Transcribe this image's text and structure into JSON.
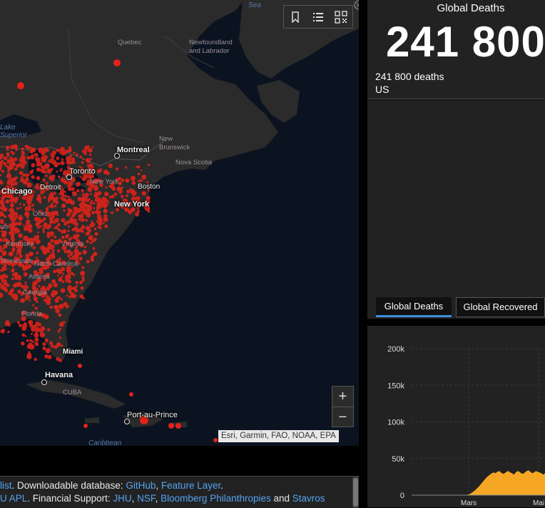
{
  "map": {
    "labels": {
      "sea": "Sea",
      "quebec": "Quebec",
      "newfoundland": "Newfoundland\nand Labrador",
      "lake_superior": "Lake\nSuperior",
      "new_brunswick": "New\nBrunswick",
      "nova_scotia": "Nova Scotia",
      "montreal": "Montreal",
      "toronto": "Toronto",
      "chicago": "Chicago",
      "detroit": "Detroit",
      "new_york_state": "New York",
      "boston": "Boston",
      "new_york_city": "New York",
      "ohio": "Ohio",
      "kentucky": "Kentucky",
      "virginia": "Virginia",
      "tennessee": "Tennessee",
      "north_carolina": "North Carolina",
      "atlanta": "Atlanta",
      "georgia": "Georgia",
      "florida": "Florida",
      "miami": "Miami",
      "havana": "Havana",
      "cuba": "CUBA",
      "port_au_prince": "Port-au-Prince",
      "caribbean": "Caribbean",
      "uis": "uis"
    },
    "attribution": "Esri, Garmin, FAO, NOAA, EPA",
    "zoom_in": "+",
    "zoom_out": "−",
    "toolbar_icons": [
      "bookmark-icon",
      "list-icon",
      "qr-grid-icon"
    ]
  },
  "footer": {
    "line1": {
      "t1": "list",
      "t2": ". Downloadable database: ",
      "t3": "GitHub",
      "t4": ", ",
      "t5": "Feature Layer",
      "t6": "."
    },
    "line2": {
      "t1": "U APL",
      "t2": ". Financial Support: ",
      "t3": "JHU",
      "t4": ", ",
      "t5": "NSF",
      "t6": ", ",
      "t7": "Bloomberg Philanthropies",
      "t8": " and ",
      "t9": "Stavros"
    }
  },
  "deaths_panel": {
    "title": "Global Deaths",
    "total": "241 800",
    "entries": [
      {
        "value": "241 800 deaths",
        "region": "US"
      }
    ]
  },
  "tabs": [
    {
      "label": "Global Deaths",
      "active": true
    },
    {
      "label": "Global Recovered",
      "active": false
    }
  ],
  "colors": {
    "accent": "#3d8fd9",
    "cases": "#e32219",
    "chart_fill": "#f5a623",
    "link": "#54a3f0"
  },
  "chart_data": {
    "type": "area",
    "y_ticks": [
      "200k",
      "150k",
      "100k",
      "50k",
      "0"
    ],
    "ylim": [
      0,
      200000
    ],
    "x_ticks": [
      "Mars",
      "Mai"
    ],
    "grid": true,
    "series": [
      {
        "values": [
          0,
          0,
          0,
          0,
          0,
          0,
          0,
          0,
          0,
          0,
          0,
          0,
          0,
          0,
          0,
          0,
          0,
          0,
          0,
          0,
          0,
          0,
          0,
          0,
          0,
          0,
          0,
          0,
          200,
          400,
          900,
          1800,
          3200,
          5000,
          7000,
          9500,
          12000,
          15000,
          18000,
          21000,
          24000,
          26000,
          28000,
          30000,
          31000,
          30000,
          32000,
          33000,
          31000,
          29000,
          30000,
          32000,
          33000,
          31000,
          30000,
          28000,
          31000,
          33000,
          32000,
          30000,
          29000,
          31000,
          33000,
          34000,
          32000,
          30000,
          31000,
          33000,
          32000,
          31000,
          30000,
          28000,
          30000
        ]
      }
    ]
  }
}
